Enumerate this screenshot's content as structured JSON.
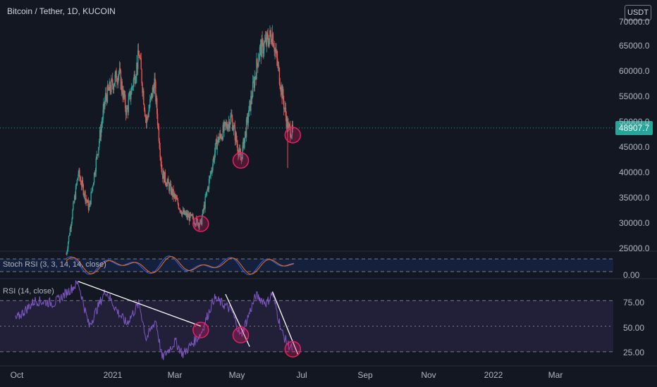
{
  "header": {
    "symbol_title": "Bitcoin / Tether, 1D, KUCOIN",
    "currency_button": "USDT",
    "current_price_label": "48907.7"
  },
  "indicators": {
    "stoch_label": "Stoch RSI (3, 3, 14, 14, close)",
    "rsi_label": "RSI (14, close)"
  },
  "colors": {
    "background": "#131722",
    "up_candle": "#26a69a",
    "down_candle": "#ef5350",
    "stoch_k": "#2962ff",
    "stoch_d": "#ff6d00",
    "rsi_line": "#7e57c2",
    "highlight_circle": "#e91e63"
  },
  "chart_data": [
    {
      "type": "candlestick",
      "symbol": "Bitcoin / Tether",
      "interval": "1D",
      "exchange": "KUCOIN",
      "current_price": 48907.7,
      "ylim": [
        25000,
        70000
      ],
      "y_ticks": [
        "70000.0",
        "65000.0",
        "60000.0",
        "55000.0",
        "50000.0",
        "45000.0",
        "40000.0",
        "35000.0",
        "30000.0",
        "25000.0"
      ],
      "x_ticks": [
        "Oct",
        "2021",
        "Mar",
        "May",
        "Jul",
        "Sep",
        "Nov",
        "2022",
        "Mar"
      ],
      "approx_close_path": [
        {
          "month": "2020-12-20",
          "price": 24000
        },
        {
          "month": "2021-01-08",
          "price": 40000
        },
        {
          "month": "2021-01-25",
          "price": 33000
        },
        {
          "month": "2021-02-20",
          "price": 55000
        },
        {
          "month": "2021-03-13",
          "price": 60000
        },
        {
          "month": "2021-03-25",
          "price": 52000
        },
        {
          "month": "2021-04-14",
          "price": 63500
        },
        {
          "month": "2021-04-25",
          "price": 50000
        },
        {
          "month": "2021-05-08",
          "price": 58000
        },
        {
          "month": "2021-05-20",
          "price": 40000
        },
        {
          "month": "2021-06-22",
          "price": 32000
        },
        {
          "month": "2021-07-20",
          "price": 30000
        },
        {
          "month": "2021-08-14",
          "price": 46000
        },
        {
          "month": "2021-09-06",
          "price": 51000
        },
        {
          "month": "2021-09-21",
          "price": 42500
        },
        {
          "month": "2021-10-20",
          "price": 64000
        },
        {
          "month": "2021-11-10",
          "price": 67500
        },
        {
          "month": "2021-12-04",
          "price": 49000
        },
        {
          "month": "2021-12-12",
          "price": 48000
        }
      ],
      "highlighted_lows": [
        {
          "date": "2021-07-20",
          "price": 30000
        },
        {
          "date": "2021-09-21",
          "price": 42500
        },
        {
          "date": "2021-12-12",
          "price": 47500
        }
      ]
    },
    {
      "type": "line",
      "title": "Stoch RSI (3, 3, 14, 14, close)",
      "ylim": [
        0,
        100
      ],
      "y_ticks": [
        "0.00"
      ],
      "bands": [
        20,
        80
      ]
    },
    {
      "type": "line",
      "title": "RSI (14, close)",
      "ylim": [
        20,
        85
      ],
      "y_ticks": [
        "75.00",
        "50.00",
        "25.00"
      ],
      "bands": [
        30,
        70
      ],
      "trendlines": [
        {
          "from": {
            "date": "2021-01-08",
            "value": 85
          },
          "to": {
            "date": "2021-07-20",
            "value": 50
          }
        },
        {
          "from": {
            "date": "2021-08-28",
            "value": 75
          },
          "to": {
            "date": "2021-10-05",
            "value": 34
          }
        },
        {
          "from": {
            "date": "2021-11-10",
            "value": 77
          },
          "to": {
            "date": "2021-12-20",
            "value": 28
          }
        }
      ],
      "highlighted_points": [
        {
          "date": "2021-07-20",
          "value": 47
        },
        {
          "date": "2021-09-21",
          "value": 43
        },
        {
          "date": "2021-12-12",
          "value": 32
        }
      ]
    }
  ]
}
